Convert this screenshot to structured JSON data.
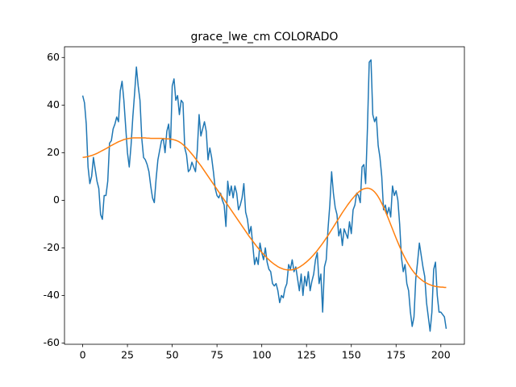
{
  "chart_data": {
    "type": "line",
    "title": "grace_lwe_cm COLORADO",
    "x": [
      0,
      1,
      2,
      3,
      4,
      5,
      6,
      7,
      8,
      9,
      10,
      11,
      12,
      13,
      14,
      15,
      16,
      17,
      18,
      19,
      20,
      21,
      22,
      23,
      24,
      25,
      26,
      27,
      28,
      29,
      30,
      31,
      32,
      33,
      34,
      35,
      36,
      37,
      38,
      39,
      40,
      41,
      42,
      43,
      44,
      45,
      46,
      47,
      48,
      49,
      50,
      51,
      52,
      53,
      54,
      55,
      56,
      57,
      58,
      59,
      60,
      61,
      62,
      63,
      64,
      65,
      66,
      67,
      68,
      69,
      70,
      71,
      72,
      73,
      74,
      75,
      76,
      77,
      78,
      79,
      80,
      81,
      82,
      83,
      84,
      85,
      86,
      87,
      88,
      89,
      90,
      91,
      92,
      93,
      94,
      95,
      96,
      97,
      98,
      99,
      100,
      101,
      102,
      103,
      104,
      105,
      106,
      107,
      108,
      109,
      110,
      111,
      112,
      113,
      114,
      115,
      116,
      117,
      118,
      119,
      120,
      121,
      122,
      123,
      124,
      125,
      126,
      127,
      128,
      129,
      130,
      131,
      132,
      133,
      134,
      135,
      136,
      137,
      138,
      139,
      140,
      141,
      142,
      143,
      144,
      145,
      146,
      147,
      148,
      149,
      150,
      151,
      152,
      153,
      154,
      155,
      156,
      157,
      158,
      159,
      160,
      161,
      162,
      163,
      164,
      165,
      166,
      167,
      168,
      169,
      170,
      171,
      172,
      173,
      174,
      175,
      176,
      177,
      178,
      179,
      180,
      181,
      182,
      183,
      184,
      185,
      186,
      187,
      188,
      189,
      190,
      191,
      192,
      193,
      194,
      195,
      196,
      197,
      198,
      199,
      200,
      201,
      202,
      203
    ],
    "series": [
      {
        "color": "#1f77b4",
        "values": [
          44,
          41,
          32,
          14,
          7,
          10,
          18,
          13,
          8,
          5,
          -6,
          -8,
          2,
          2,
          8,
          24,
          25,
          30,
          32,
          35,
          33,
          46,
          50,
          42,
          31,
          20,
          14,
          23,
          35,
          45,
          56,
          48,
          42,
          26,
          18,
          17,
          15,
          12,
          6,
          1,
          -1,
          9,
          17,
          21,
          25,
          26,
          20,
          29,
          32,
          22,
          48,
          51,
          42,
          44,
          36,
          42,
          41,
          22,
          19,
          12,
          13,
          16,
          14,
          12,
          21,
          36,
          27,
          30,
          33,
          29,
          17,
          22,
          18,
          12,
          5,
          2,
          1,
          3,
          0,
          -2,
          -11,
          8,
          2,
          6,
          1,
          6,
          3,
          -4,
          -2,
          1,
          7,
          -5,
          -8,
          -14,
          -11,
          -19,
          -27,
          -24,
          -27,
          -18,
          -22,
          -25,
          -20,
          -26,
          -29,
          -30,
          -35,
          -36,
          -35,
          -38,
          -43,
          -40,
          -41,
          -37,
          -35,
          -27,
          -29,
          -25,
          -30,
          -28,
          -33,
          -38,
          -31,
          -40,
          -32,
          -36,
          -30,
          -38,
          -34,
          -31,
          -25,
          -22,
          -35,
          -31,
          -47,
          -28,
          -25,
          -12,
          -2,
          12,
          3,
          -3,
          -6,
          -15,
          -12,
          -19,
          -12,
          -14,
          -16,
          -9,
          -14,
          -4,
          -2,
          3,
          2,
          -1,
          14,
          15,
          7,
          30,
          58,
          59,
          36,
          33,
          35,
          23,
          18,
          10,
          -4,
          -2,
          -6,
          -3,
          -7,
          6,
          2,
          4,
          0,
          -10,
          -24,
          -30,
          -27,
          -35,
          -38,
          -47,
          -53,
          -49,
          -33,
          -26,
          -18,
          -23,
          -28,
          -32,
          -43,
          -49,
          -55,
          -47,
          -29,
          -26,
          -40,
          -47,
          -47,
          -48,
          -49,
          -54
        ]
      },
      {
        "color": "#ff7f0e",
        "values": [
          18,
          18.1,
          18.2,
          18.4,
          18.6,
          18.8,
          19.1,
          19.4,
          19.7,
          20.1,
          20.5,
          20.9,
          21.3,
          21.7,
          22.1,
          22.6,
          23,
          23.4,
          23.8,
          24.2,
          24.6,
          24.9,
          25.2,
          25.5,
          25.7,
          25.9,
          26.0,
          26.1,
          26.2,
          26.2,
          26.2,
          26.2,
          26.2,
          26.2,
          26.2,
          26.2,
          26.1,
          26.1,
          26.0,
          26.0,
          26.0,
          26,
          26,
          26,
          26,
          25.9,
          25.9,
          25.8,
          25.8,
          25.7,
          25.6,
          25.4,
          25.2,
          24.9,
          24.5,
          24.0,
          23.4,
          22.7,
          22.0,
          21.2,
          20.3,
          19.4,
          18.5,
          17.5,
          16.5,
          15.5,
          14.5,
          13.4,
          12.3,
          11.2,
          10.1,
          9.0,
          7.9,
          6.8,
          5.7,
          4.6,
          3.5,
          2.4,
          1.3,
          0.2,
          -0.9,
          -2,
          -3.1,
          -4.2,
          -5.3,
          -6.4,
          -7.5,
          -8.6,
          -9.7,
          -10.8,
          -11.9,
          -13,
          -14.1,
          -15.2,
          -16.2,
          -17.2,
          -18.2,
          -19.2,
          -20.1,
          -21,
          -21.9,
          -22.7,
          -23.5,
          -24.3,
          -25,
          -25.7,
          -26.3,
          -26.9,
          -27.4,
          -27.9,
          -28.3,
          -28.6,
          -28.9,
          -29.1,
          -29.2,
          -29.3,
          -29.3,
          -29.2,
          -29,
          -28.8,
          -28.5,
          -28.1,
          -27.6,
          -27.1,
          -26.5,
          -25.9,
          -25.2,
          -24.5,
          -23.7,
          -22.9,
          -22.0,
          -21.1,
          -20.1,
          -19.1,
          -18.1,
          -17,
          -15.9,
          -14.8,
          -13.6,
          -12.4,
          -11.2,
          -10,
          -8.8,
          -7.6,
          -6.4,
          -5.2,
          -4.1,
          -3,
          -1.9,
          -0.9,
          0.1,
          1,
          1.9,
          2.7,
          3.4,
          4,
          4.5,
          4.8,
          5,
          5.1,
          5.0,
          4.7,
          4.2,
          3.5,
          2.6,
          1.5,
          0.2,
          -1.3,
          -2.9,
          -4.6,
          -6.4,
          -8.3,
          -10.2,
          -12.1,
          -14,
          -15.9,
          -17.7,
          -19.5,
          -21.2,
          -22.8,
          -24.3,
          -25.7,
          -27,
          -28.2,
          -29.3,
          -30.3,
          -31.2,
          -32,
          -32.7,
          -33.3,
          -33.9,
          -34.4,
          -34.8,
          -35.2,
          -35.5,
          -35.8,
          -36,
          -36.2,
          -36.3,
          -36.4,
          -36.5,
          -36.5,
          -36.6,
          -36.6
        ]
      }
    ],
    "xlim": [
      -10.15,
      213.15
    ],
    "xticks": [
      0,
      25,
      50,
      75,
      100,
      125,
      150,
      175,
      200
    ],
    "ylim": [
      -60.5,
      64.5
    ],
    "yticks": [
      -60,
      -40,
      -20,
      0,
      20,
      40,
      60
    ]
  }
}
